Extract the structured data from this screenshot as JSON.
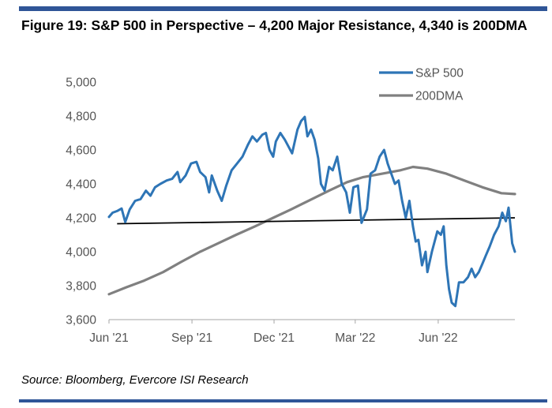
{
  "figure": {
    "title": "Figure 19: S&P 500 in Perspective – 4,200 Major Resistance, 4,340 is 200DMA",
    "source": "Source: Bloomberg, Evercore ISI Research"
  },
  "colors": {
    "accent_rule": "#2f5597",
    "sp500": "#2e75b6",
    "dma200": "#808080",
    "resistance": "#000000"
  },
  "chart_data": {
    "type": "line",
    "title": "Figure 19: S&P 500 in Perspective – 4,200 Major Resistance, 4,340 is 200DMA",
    "xlabel": "",
    "ylabel": "",
    "ylim": [
      3600,
      5000
    ],
    "yticks": [
      3600,
      3800,
      4000,
      4200,
      4400,
      4600,
      4800,
      5000
    ],
    "ytick_labels": [
      "3,600",
      "3,800",
      "4,000",
      "4,200",
      "4,400",
      "4,600",
      "4,800",
      "5,000"
    ],
    "xlim": [
      "2021-06-01",
      "2022-08-25"
    ],
    "xticks": [
      "2021-06-01",
      "2021-09-01",
      "2021-12-01",
      "2022-03-01",
      "2022-06-01"
    ],
    "xtick_labels": [
      "Jun '21",
      "Sep '21",
      "Dec '21",
      "Mar '22",
      "Jun '22"
    ],
    "legend_position": "top-right",
    "grid": false,
    "series": [
      {
        "name": "S&P 500",
        "color": "#2e75b6",
        "x": [
          "2021-06-01",
          "2021-06-05",
          "2021-06-10",
          "2021-06-15",
          "2021-06-19",
          "2021-06-24",
          "2021-06-30",
          "2021-07-06",
          "2021-07-12",
          "2021-07-17",
          "2021-07-22",
          "2021-07-28",
          "2021-08-04",
          "2021-08-10",
          "2021-08-16",
          "2021-08-19",
          "2021-08-25",
          "2021-08-31",
          "2021-09-06",
          "2021-09-10",
          "2021-09-16",
          "2021-09-20",
          "2021-09-23",
          "2021-09-29",
          "2021-10-04",
          "2021-10-09",
          "2021-10-15",
          "2021-10-21",
          "2021-10-27",
          "2021-11-02",
          "2021-11-07",
          "2021-11-12",
          "2021-11-18",
          "2021-11-22",
          "2021-11-26",
          "2021-11-30",
          "2021-12-03",
          "2021-12-08",
          "2021-12-13",
          "2021-12-17",
          "2021-12-21",
          "2021-12-27",
          "2021-12-31",
          "2022-01-04",
          "2022-01-07",
          "2022-01-11",
          "2022-01-15",
          "2022-01-19",
          "2022-01-22",
          "2022-01-26",
          "2022-01-31",
          "2022-02-04",
          "2022-02-09",
          "2022-02-14",
          "2022-02-19",
          "2022-02-23",
          "2022-02-27",
          "2022-03-04",
          "2022-03-08",
          "2022-03-14",
          "2022-03-18",
          "2022-03-23",
          "2022-03-28",
          "2022-04-02",
          "2022-04-06",
          "2022-04-10",
          "2022-04-14",
          "2022-04-18",
          "2022-04-22",
          "2022-04-26",
          "2022-04-30",
          "2022-05-04",
          "2022-05-07",
          "2022-05-10",
          "2022-05-14",
          "2022-05-18",
          "2022-05-20",
          "2022-05-25",
          "2022-05-31",
          "2022-06-04",
          "2022-06-07",
          "2022-06-10",
          "2022-06-13",
          "2022-06-16",
          "2022-06-20",
          "2022-06-24",
          "2022-06-29",
          "2022-07-04",
          "2022-07-08",
          "2022-07-12",
          "2022-07-16",
          "2022-07-20",
          "2022-07-24",
          "2022-07-28",
          "2022-08-02",
          "2022-08-07",
          "2022-08-11",
          "2022-08-15",
          "2022-08-18",
          "2022-08-22",
          "2022-08-25"
        ],
        "values": [
          4205,
          4230,
          4240,
          4255,
          4175,
          4250,
          4300,
          4310,
          4360,
          4330,
          4380,
          4400,
          4420,
          4430,
          4470,
          4410,
          4450,
          4520,
          4530,
          4470,
          4440,
          4350,
          4450,
          4360,
          4300,
          4390,
          4480,
          4520,
          4560,
          4630,
          4680,
          4650,
          4690,
          4700,
          4600,
          4560,
          4650,
          4700,
          4660,
          4620,
          4580,
          4720,
          4770,
          4795,
          4680,
          4720,
          4660,
          4550,
          4400,
          4360,
          4500,
          4480,
          4560,
          4400,
          4350,
          4230,
          4380,
          4390,
          4170,
          4250,
          4460,
          4480,
          4560,
          4600,
          4520,
          4460,
          4400,
          4420,
          4300,
          4200,
          4300,
          4150,
          4060,
          4070,
          3920,
          4000,
          3880,
          4000,
          4120,
          4100,
          4150,
          3920,
          3780,
          3700,
          3680,
          3820,
          3820,
          3850,
          3900,
          3850,
          3880,
          3930,
          3980,
          4030,
          4100,
          4150,
          4230,
          4180,
          4260,
          4050,
          4000
        ]
      },
      {
        "name": "200DMA",
        "color": "#808080",
        "x": [
          "2021-06-01",
          "2021-06-20",
          "2021-07-10",
          "2021-07-31",
          "2021-08-20",
          "2021-09-10",
          "2021-09-30",
          "2021-10-20",
          "2021-11-10",
          "2021-11-30",
          "2021-12-20",
          "2022-01-10",
          "2022-01-31",
          "2022-02-20",
          "2022-03-10",
          "2022-03-31",
          "2022-04-20",
          "2022-05-04",
          "2022-05-20",
          "2022-06-10",
          "2022-06-30",
          "2022-07-20",
          "2022-08-10",
          "2022-08-25"
        ],
        "values": [
          3750,
          3790,
          3830,
          3880,
          3940,
          4000,
          4050,
          4100,
          4150,
          4200,
          4250,
          4305,
          4360,
          4410,
          4440,
          4460,
          4480,
          4500,
          4490,
          4460,
          4420,
          4380,
          4345,
          4340
        ]
      }
    ],
    "annotations": [
      {
        "type": "resistance-line",
        "color": "#000000",
        "x": [
          "2021-06-10",
          "2022-08-25"
        ],
        "values": [
          4165,
          4200
        ]
      }
    ]
  }
}
